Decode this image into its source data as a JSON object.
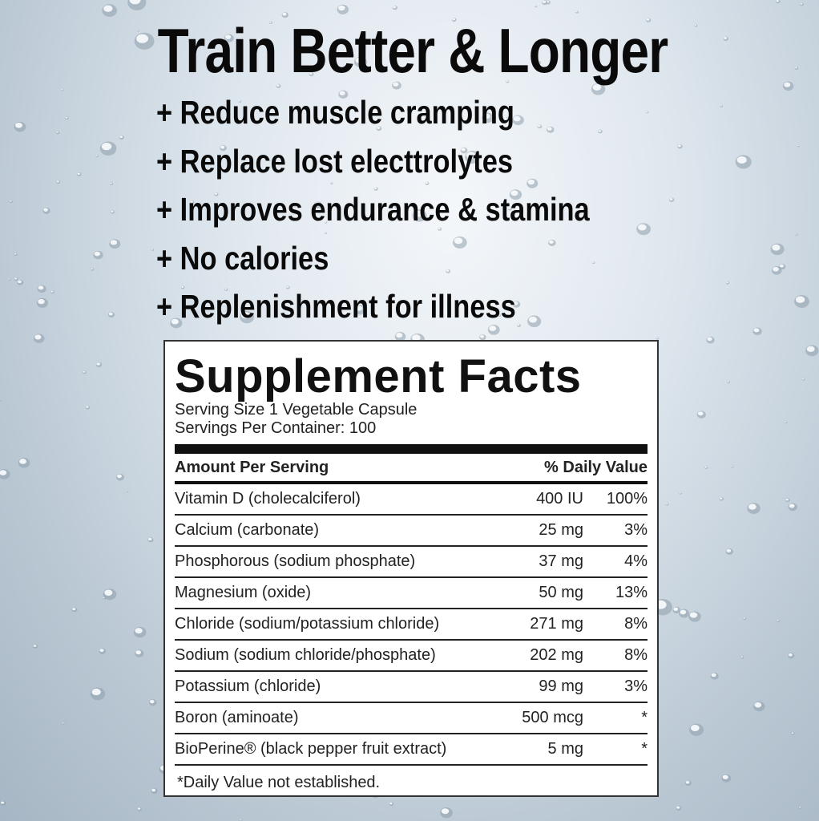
{
  "headline": "Train Better & Longer",
  "benefits": [
    "+ Reduce muscle cramping",
    "+ Replace lost electtrolytes",
    "+ Improves endurance & stamina",
    "+ No calories",
    "+ Replenishment for illness"
  ],
  "facts": {
    "title": "Supplement Facts",
    "serving_size": "Serving Size 1 Vegetable Capsule",
    "servings_per_container": "Servings Per Container: 100",
    "col_amount": "Amount Per Serving",
    "col_dv": "% Daily Value",
    "rows": [
      {
        "name": "Vitamin D (cholecalciferol)",
        "amount": "400 IU",
        "dv": "100%"
      },
      {
        "name": "Calcium (carbonate)",
        "amount": "25 mg",
        "dv": "3%"
      },
      {
        "name": "Phosphorous (sodium phosphate)",
        "amount": "37 mg",
        "dv": "4%"
      },
      {
        "name": "Magnesium (oxide)",
        "amount": "50 mg",
        "dv": "13%"
      },
      {
        "name": "Chloride (sodium/potassium chloride)",
        "amount": "271 mg",
        "dv": "8%"
      },
      {
        "name": "Sodium (sodium chloride/phosphate)",
        "amount": "202 mg",
        "dv": "8%"
      },
      {
        "name": "Potassium (chloride)",
        "amount": "99 mg",
        "dv": "3%"
      },
      {
        "name": "Boron (aminoate)",
        "amount": "500 mcg",
        "dv": "*"
      },
      {
        "name": "BioPerine® (black pepper fruit extract)",
        "amount": "5 mg",
        "dv": "*"
      }
    ],
    "footnote": "*Daily Value not established."
  }
}
